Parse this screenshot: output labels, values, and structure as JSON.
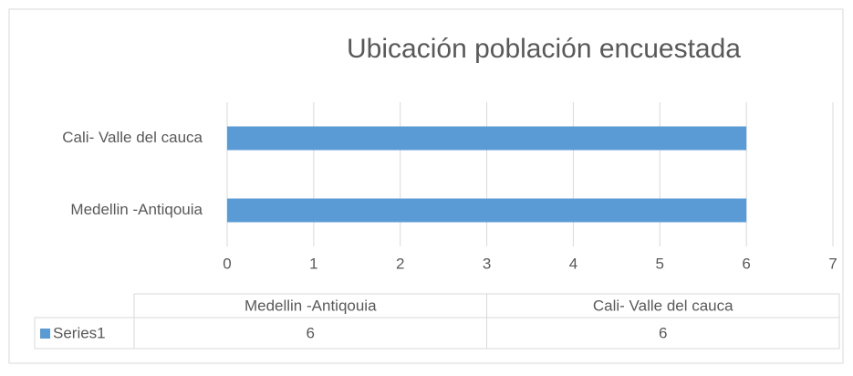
{
  "chart_data": {
    "type": "bar",
    "orientation": "horizontal",
    "title": "Ubicación población encuestada",
    "categories": [
      "Medellin -Antiqouia",
      "Cali- Valle del cauca"
    ],
    "series": [
      {
        "name": "Series1",
        "color": "#5b9bd5",
        "values": [
          6,
          6
        ]
      }
    ],
    "xlim": [
      0,
      7
    ],
    "xticks": [
      0,
      1,
      2,
      3,
      4,
      5,
      6,
      7
    ],
    "grid": true,
    "data_table": true
  }
}
